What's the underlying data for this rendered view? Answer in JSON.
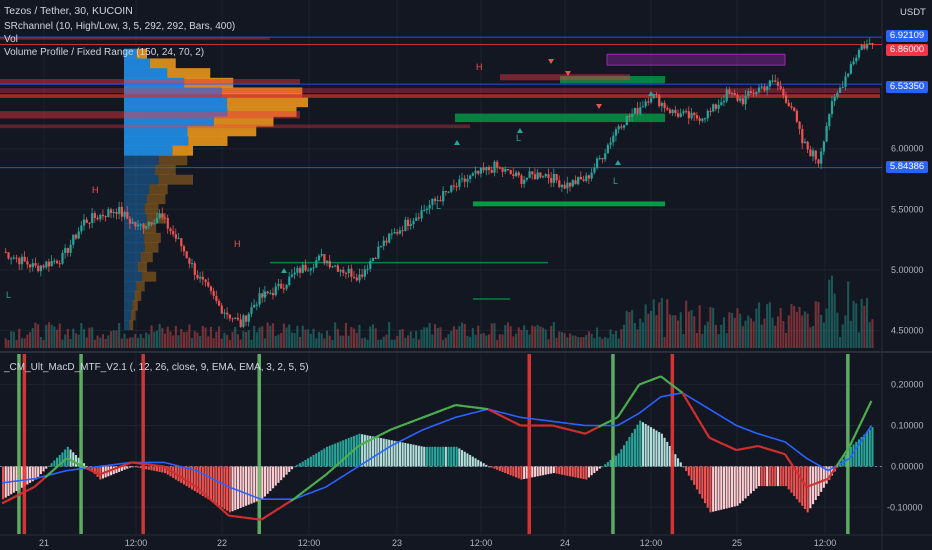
{
  "header": {
    "symbol_line": "Tezos / Tether, 30, KUCOIN",
    "sr_line": "SRchannel (10, High/Low, 3, 5, 292, 292, Bars, 400)",
    "vol_line": "Vol",
    "vp_line": "Volume Profile / Fixed Range (150, 24, 70, 2)",
    "macd_line": "_CM_Ult_MacD_MTF_V2.1 (, 12, 26, close, 9, EMA, EMA, 3, 2, 5, 5)",
    "currency": "USDT"
  },
  "price_tags": [
    {
      "label": "6.92109",
      "color": "#2962ff"
    },
    {
      "label": "6.86000",
      "color": "#f23645"
    },
    {
      "label": "6.53350",
      "color": "#2962ff"
    },
    {
      "label": "5.84386",
      "color": "#2962ff"
    }
  ],
  "colors": {
    "up": "#26a69a",
    "down": "#ef5350",
    "fast": "#4caf50",
    "signal": "#2962ff",
    "macd_red": "#d32f2f",
    "sr_red": "#b71c1c",
    "sr_green": "#00c853",
    "vp_blue": "#2196f3",
    "vp_orange": "#f59c1a",
    "grid": "#1e222d"
  },
  "chart_data": [
    {
      "type": "candlestick",
      "title": "Tezos / Tether, 30, KUCOIN",
      "ylim": [
        4.38,
        6.98
      ],
      "y_ticks": [
        6.0,
        5.5,
        5.0,
        4.5
      ],
      "y_tick_labels": [
        "6.00000",
        "5.50000",
        "5.00000",
        "4.50000"
      ],
      "x_ticks": [
        "21",
        "12:00",
        "22",
        "12:00",
        "23",
        "12:00",
        "24",
        "12:00",
        "25",
        "12:00"
      ],
      "x_range_bars": [
        0,
        310
      ],
      "bars_count": 232,
      "key_closes": [
        [
          0,
          5.15
        ],
        [
          12,
          5.02
        ],
        [
          22,
          5.1
        ],
        [
          30,
          5.4
        ],
        [
          42,
          5.5
        ],
        [
          50,
          5.35
        ],
        [
          58,
          5.45
        ],
        [
          66,
          5.2
        ],
        [
          72,
          4.95
        ],
        [
          80,
          4.7
        ],
        [
          88,
          4.55
        ],
        [
          94,
          4.75
        ],
        [
          102,
          4.85
        ],
        [
          110,
          5.0
        ],
        [
          118,
          5.1
        ],
        [
          126,
          5.0
        ],
        [
          132,
          4.95
        ],
        [
          140,
          5.2
        ],
        [
          150,
          5.4
        ],
        [
          162,
          5.6
        ],
        [
          172,
          5.75
        ],
        [
          182,
          5.85
        ],
        [
          192,
          5.75
        ],
        [
          200,
          5.8
        ],
        [
          208,
          5.7
        ],
        [
          216,
          5.75
        ],
        [
          222,
          5.95
        ],
        [
          228,
          6.2
        ],
        [
          234,
          6.3
        ],
        [
          240,
          6.45
        ],
        [
          248,
          6.3
        ],
        [
          256,
          6.25
        ],
        [
          262,
          6.3
        ],
        [
          268,
          6.45
        ],
        [
          274,
          6.4
        ],
        [
          280,
          6.5
        ],
        [
          286,
          6.55
        ],
        [
          292,
          6.35
        ],
        [
          296,
          6.05
        ],
        [
          302,
          5.9
        ],
        [
          306,
          6.3
        ],
        [
          310,
          6.5
        ],
        [
          314,
          6.7
        ],
        [
          318,
          6.85
        ],
        [
          322,
          6.86
        ]
      ],
      "sr_levels": [
        6.92109,
        6.86,
        6.5335,
        5.84386,
        6.45,
        6.3,
        6.2,
        6.14
      ],
      "volume_profile": {
        "levels": [
          6.78,
          6.7,
          6.62,
          6.54,
          6.46,
          6.38,
          6.3,
          6.22,
          6.14,
          6.06,
          5.98,
          5.9,
          5.82,
          5.74,
          5.66,
          5.58,
          5.5,
          5.42,
          5.34,
          5.26,
          5.18,
          5.1,
          5.02,
          4.94,
          4.86,
          4.78,
          4.7,
          4.62,
          4.54
        ],
        "total": [
          20,
          45,
          75,
          95,
          155,
          160,
          150,
          130,
          115,
          90,
          60,
          55,
          45,
          60,
          38,
          36,
          30,
          36,
          28,
          32,
          30,
          25,
          20,
          28,
          18,
          15,
          12,
          10,
          8
        ],
        "up_share": [
          0.55,
          0.5,
          0.5,
          0.55,
          0.55,
          0.56,
          0.6,
          0.6,
          0.48,
          0.62,
          0.7,
          0.55,
          0.6,
          0.5,
          0.58,
          0.55,
          0.6,
          0.55,
          0.6,
          0.55,
          0.6,
          0.58,
          0.6,
          0.55,
          0.6,
          0.6,
          0.6,
          0.6,
          0.6
        ]
      }
    },
    {
      "type": "line",
      "title": "_CM_Ult_MacD_MTF_V2.1",
      "ylim": [
        -0.16,
        0.26
      ],
      "y_ticks": [
        0.2,
        0.1,
        0.0,
        -0.1
      ],
      "y_tick_labels": [
        "0.20000",
        "0.10000",
        "0.00000",
        "-0.10000"
      ],
      "series": [
        {
          "name": "macd",
          "x": [
            0,
            12,
            24,
            36,
            48,
            60,
            72,
            84,
            96,
            108,
            120,
            132,
            144,
            156,
            168,
            180,
            192,
            204,
            216,
            228,
            236,
            244,
            252,
            262,
            272,
            280,
            290,
            298,
            306,
            314,
            322
          ],
          "values": [
            -0.09,
            -0.05,
            0.02,
            -0.02,
            0.01,
            0.0,
            -0.05,
            -0.12,
            -0.13,
            -0.08,
            -0.02,
            0.05,
            0.09,
            0.12,
            0.15,
            0.14,
            0.1,
            0.1,
            0.08,
            0.12,
            0.2,
            0.22,
            0.18,
            0.07,
            0.04,
            0.05,
            0.03,
            -0.05,
            -0.03,
            0.05,
            0.16
          ]
        },
        {
          "name": "signal",
          "x": [
            0,
            12,
            24,
            36,
            48,
            60,
            72,
            84,
            96,
            108,
            120,
            132,
            144,
            156,
            168,
            180,
            192,
            204,
            216,
            228,
            236,
            244,
            252,
            262,
            272,
            280,
            290,
            298,
            306,
            314,
            322
          ],
          "values": [
            -0.04,
            -0.03,
            -0.01,
            0.0,
            0.01,
            0.01,
            -0.01,
            -0.05,
            -0.08,
            -0.08,
            -0.05,
            0.0,
            0.05,
            0.09,
            0.12,
            0.14,
            0.12,
            0.11,
            0.1,
            0.1,
            0.13,
            0.17,
            0.18,
            0.14,
            0.1,
            0.08,
            0.06,
            0.02,
            -0.01,
            0.02,
            0.1
          ]
        }
      ],
      "cross_markers": [
        {
          "x": 6,
          "kind": "bull"
        },
        {
          "x": 8,
          "kind": "bear"
        },
        {
          "x": 29,
          "kind": "bull"
        },
        {
          "x": 52,
          "kind": "bear"
        },
        {
          "x": 95,
          "kind": "bull"
        },
        {
          "x": 195,
          "kind": "bear"
        },
        {
          "x": 226,
          "kind": "bull"
        },
        {
          "x": 248,
          "kind": "bear"
        },
        {
          "x": 313,
          "kind": "bull"
        }
      ]
    }
  ]
}
